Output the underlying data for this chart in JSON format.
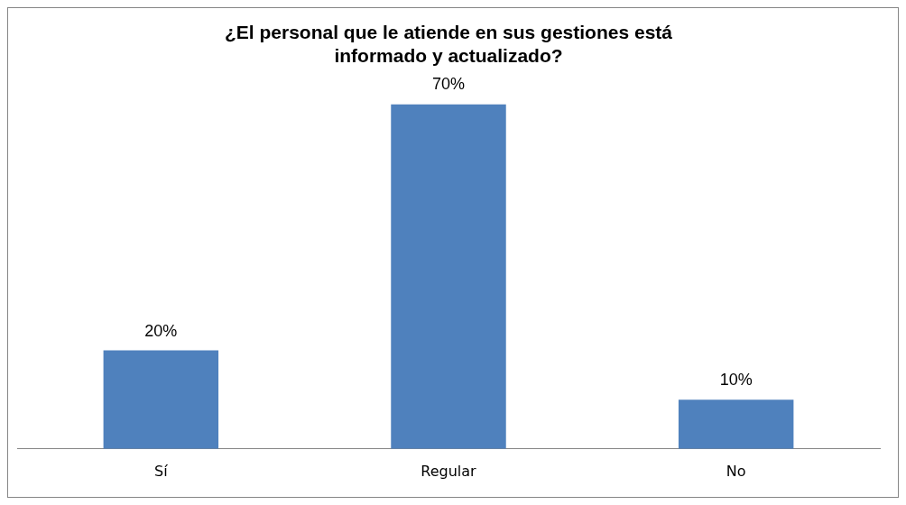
{
  "chart_data": {
    "type": "bar",
    "title": "¿El personal que le atiende en sus gestiones está informado y actualizado?",
    "categories": [
      "Sí",
      "Regular",
      "No"
    ],
    "values": [
      20,
      70,
      10
    ],
    "value_labels": [
      "20%",
      "70%",
      "10%"
    ],
    "color": "#4f81bd",
    "tick_labels": "x",
    "grid": false,
    "legend": false
  }
}
